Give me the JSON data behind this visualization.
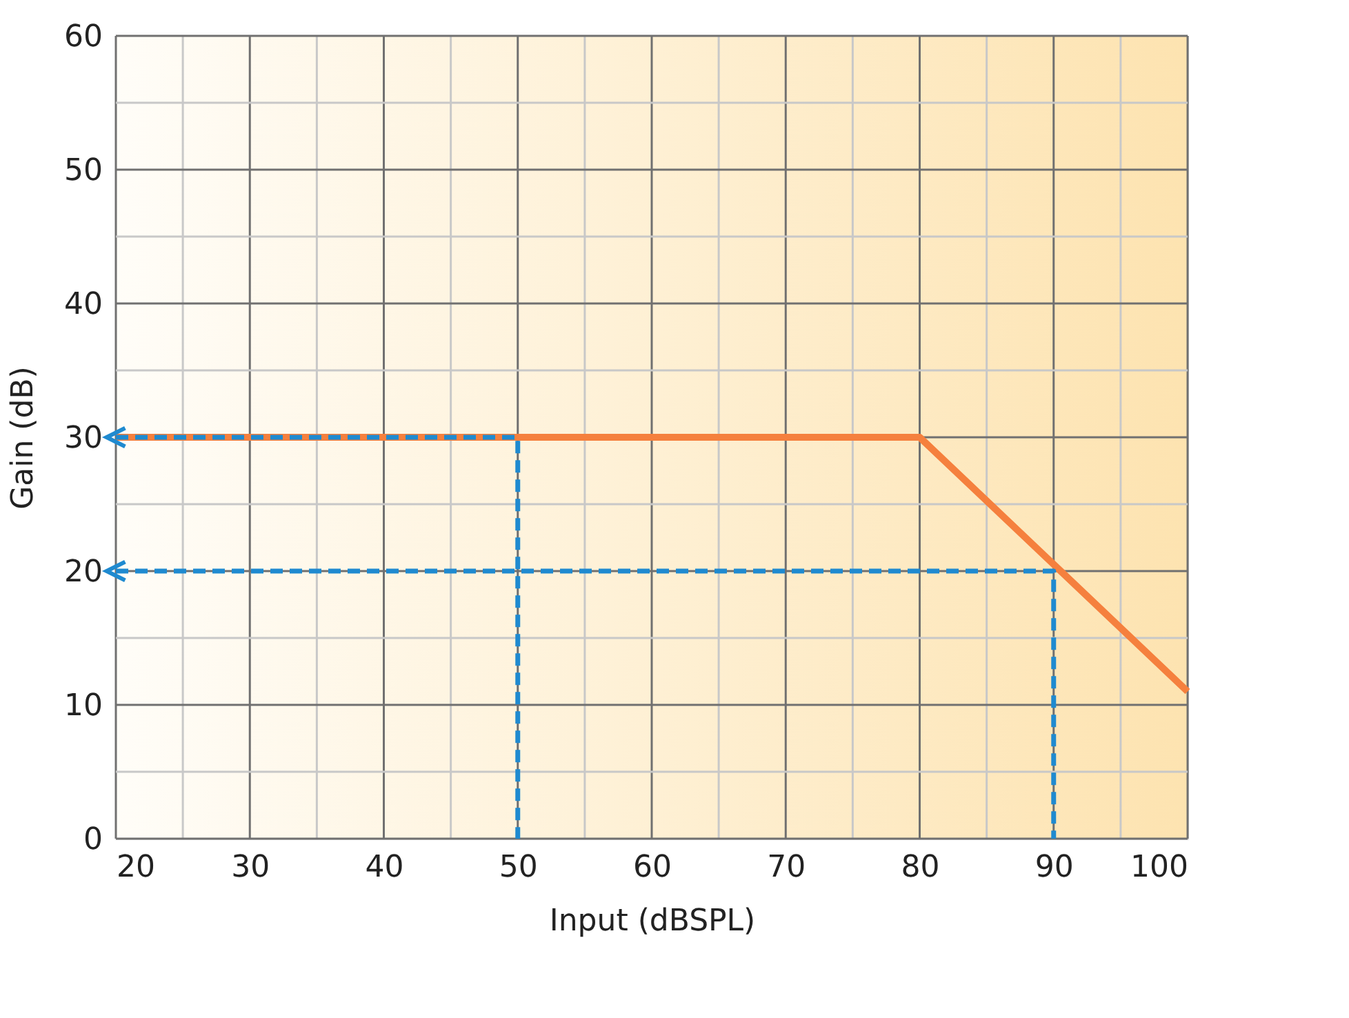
{
  "chart_data": {
    "type": "line",
    "xlabel": "Input (dBSPL)",
    "ylabel": "Gain (dB)",
    "xlim": [
      20,
      100
    ],
    "ylim": [
      0,
      60
    ],
    "xticks": [
      20,
      {
        "value": 25,
        "label": null
      },
      30,
      {
        "value": 35,
        "label": null
      },
      40,
      {
        "value": 45,
        "label": null
      },
      50,
      {
        "value": 55,
        "label": null
      },
      60,
      {
        "value": 65,
        "label": null
      },
      70,
      {
        "value": 75,
        "label": null
      },
      80,
      {
        "value": 85,
        "label": null
      },
      90,
      {
        "value": 95,
        "label": null
      },
      100
    ],
    "yticks": [
      0,
      {
        "value": 5,
        "label": null
      },
      10,
      {
        "value": 15,
        "label": null
      },
      20,
      {
        "value": 25,
        "label": null
      },
      30,
      {
        "value": 35,
        "label": null
      },
      40,
      {
        "value": 45,
        "label": null
      },
      50,
      {
        "value": 55,
        "label": null
      },
      60
    ],
    "grid": true,
    "marker": "none",
    "series": [
      {
        "color": "#f5803e",
        "x": [
          20,
          80,
          100
        ],
        "values": [
          30,
          30,
          11
        ],
        "line_style": "solid"
      },
      {
        "color": "#1f8ad0",
        "x": [
          20,
          50,
          50
        ],
        "values": [
          30,
          30,
          0
        ],
        "line_style": "dashed"
      },
      {
        "color": "#1f8ad0",
        "x": [
          20,
          90,
          90
        ],
        "values": [
          20,
          20,
          0
        ],
        "line_style": "dashed"
      }
    ]
  }
}
